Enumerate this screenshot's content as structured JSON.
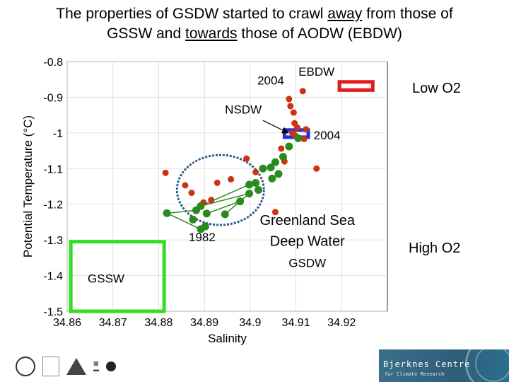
{
  "slide": {
    "title_line1_pre": "The properties of GSDW started to crawl ",
    "title_away": "away",
    "title_line1_post": " from those of",
    "title_line2_pre": "GSSW and ",
    "title_towards": "towards",
    "title_line2_post": " those of AODW (EBDW)",
    "low_o2": "Low O2",
    "high_o2": "High O2"
  },
  "chart_data": {
    "type": "scatter",
    "xlabel": "Salinity",
    "ylabel": "Potential Temperature (°C)",
    "xlim": [
      34.86,
      34.93
    ],
    "ylim": [
      -1.5,
      -0.8
    ],
    "xticks": [
      "34.86",
      "34.87",
      "34.88",
      "34.89",
      "34.9",
      "34.91",
      "34.92"
    ],
    "xtick_values": [
      34.86,
      34.87,
      34.88,
      34.89,
      34.9,
      34.91,
      34.92
    ],
    "yticks": [
      "-0.8",
      "-0.9",
      "-1",
      "-1.1",
      "-1.2",
      "-1.3",
      "-1.4",
      "-1.5"
    ],
    "ytick_values": [
      -0.8,
      -0.9,
      -1.0,
      -1.1,
      -1.2,
      -1.3,
      -1.4,
      -1.5
    ],
    "grid": true,
    "series": [
      {
        "name": "red",
        "color": "#cc3311",
        "points": [
          [
            34.9115,
            -0.883
          ],
          [
            34.9085,
            -0.905
          ],
          [
            34.9088,
            -0.925
          ],
          [
            34.9095,
            -0.943
          ],
          [
            34.9097,
            -0.973
          ],
          [
            34.9103,
            -0.985
          ],
          [
            34.9092,
            -1.0
          ],
          [
            34.9122,
            -0.99
          ],
          [
            34.9098,
            -1.007
          ],
          [
            34.9118,
            -1.017
          ],
          [
            34.9068,
            -1.044
          ],
          [
            34.9075,
            -1.08
          ],
          [
            34.8992,
            -1.072
          ],
          [
            34.9145,
            -1.1
          ],
          [
            34.8958,
            -1.13
          ],
          [
            34.9012,
            -1.11
          ],
          [
            34.8815,
            -1.112
          ],
          [
            34.8928,
            -1.14
          ],
          [
            34.8858,
            -1.147
          ],
          [
            34.8872,
            -1.168
          ],
          [
            34.8915,
            -1.188
          ],
          [
            34.8898,
            -1.195
          ],
          [
            34.9055,
            -1.222
          ]
        ]
      },
      {
        "name": "green",
        "color": "#2a8a1f",
        "points": [
          [
            34.9105,
            -1.015
          ],
          [
            34.9085,
            -1.038
          ],
          [
            34.9072,
            -1.067
          ],
          [
            34.9055,
            -1.082
          ],
          [
            34.9045,
            -1.097
          ],
          [
            34.9062,
            -1.115
          ],
          [
            34.9048,
            -1.128
          ],
          [
            34.9028,
            -1.1
          ],
          [
            34.9012,
            -1.14
          ],
          [
            34.8998,
            -1.145
          ],
          [
            34.9018,
            -1.16
          ],
          [
            34.8998,
            -1.17
          ],
          [
            34.8978,
            -1.192
          ],
          [
            34.8892,
            -1.205
          ],
          [
            34.8882,
            -1.217
          ],
          [
            34.8818,
            -1.225
          ],
          [
            34.8875,
            -1.243
          ],
          [
            34.8905,
            -1.226
          ],
          [
            34.8945,
            -1.228
          ],
          [
            34.8902,
            -1.262
          ],
          [
            34.8892,
            -1.27
          ]
        ]
      }
    ],
    "connector_lines": [
      [
        [
          34.8818,
          -1.225
        ],
        [
          34.8882,
          -1.217
        ]
      ],
      [
        [
          34.8818,
          -1.225
        ],
        [
          34.8892,
          -1.27
        ]
      ],
      [
        [
          34.8892,
          -1.205
        ],
        [
          34.8998,
          -1.17
        ]
      ],
      [
        [
          34.8905,
          -1.226
        ],
        [
          34.8978,
          -1.192
        ]
      ],
      [
        [
          34.8945,
          -1.228
        ],
        [
          34.8998,
          -1.17
        ]
      ],
      [
        [
          34.8892,
          -1.205
        ],
        [
          34.8998,
          -1.145
        ]
      ]
    ],
    "boxes": [
      {
        "name": "GSSW",
        "color": "#33dd22",
        "x": [
          34.8608,
          34.8812
        ],
        "y": [
          -1.5,
          -1.305
        ]
      },
      {
        "name": "EBDW",
        "color": "#e21b1b",
        "x": [
          34.9195,
          34.9268
        ],
        "y": [
          -0.88,
          -0.857
        ]
      },
      {
        "name": "NSDW",
        "color": "#1d2fe0",
        "x": [
          34.9075,
          34.9127
        ],
        "y": [
          -1.012,
          -0.992
        ]
      }
    ],
    "ellipse": {
      "cx": 34.8935,
      "cy": -1.16,
      "rx": 0.0095,
      "ry": 0.098,
      "color": "#2a5c8a"
    },
    "annotations": [
      {
        "text": "EBDW",
        "x": 34.9145,
        "y": -0.84
      },
      {
        "text": "2004",
        "x": 34.9045,
        "y": -0.864
      },
      {
        "text": "NSDW",
        "x": 34.8985,
        "y": -0.946
      },
      {
        "text": "2004",
        "x": 34.9168,
        "y": -1.018
      },
      {
        "text": "1982",
        "x": 34.8895,
        "y": -1.304
      },
      {
        "text": "GSSW",
        "x": 34.8685,
        "y": -1.42
      },
      {
        "text": "Greenland Sea",
        "x": 34.9125,
        "y": -1.258
      },
      {
        "text": "Deep Water",
        "x": 34.9125,
        "y": -1.317
      },
      {
        "text": "GSDW",
        "x": 34.9125,
        "y": -1.376
      }
    ],
    "arrow": {
      "from": [
        34.9028,
        -0.965
      ],
      "to": [
        34.9083,
        -1.0
      ]
    }
  }
}
